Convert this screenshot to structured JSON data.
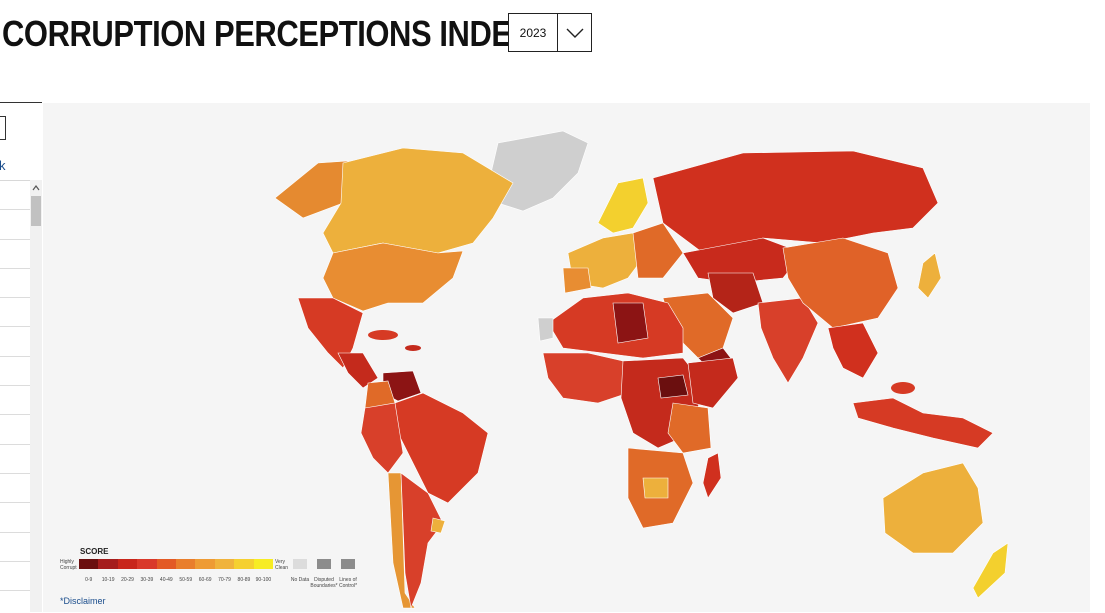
{
  "header": {
    "title": "CORRUPTION PERCEPTIONS INDEX",
    "year_select": {
      "value": "2023"
    }
  },
  "sidebar": {
    "link_text": "k"
  },
  "legend": {
    "title": "SCORE",
    "low_label": "Highly Corrupt",
    "high_label": "Very Clean",
    "ranges": [
      "0-9",
      "10-19",
      "20-29",
      "30-39",
      "40-49",
      "50-59",
      "60-69",
      "70-79",
      "80-89",
      "90-100"
    ],
    "colors": [
      "#6b0f0f",
      "#a51d1d",
      "#c8261b",
      "#d9392a",
      "#e35a25",
      "#e97e2c",
      "#ee9b34",
      "#f0b33c",
      "#f5d030",
      "#f7ec24"
    ],
    "no_data_label": "No Data",
    "disputed_label": "Disputed Boundaries*",
    "lines_label": "Lines of Control*",
    "no_data_color": "#dcdcdc",
    "disputed_color": "#8c8c8c"
  },
  "disclaimer": "*Disclaimer"
}
